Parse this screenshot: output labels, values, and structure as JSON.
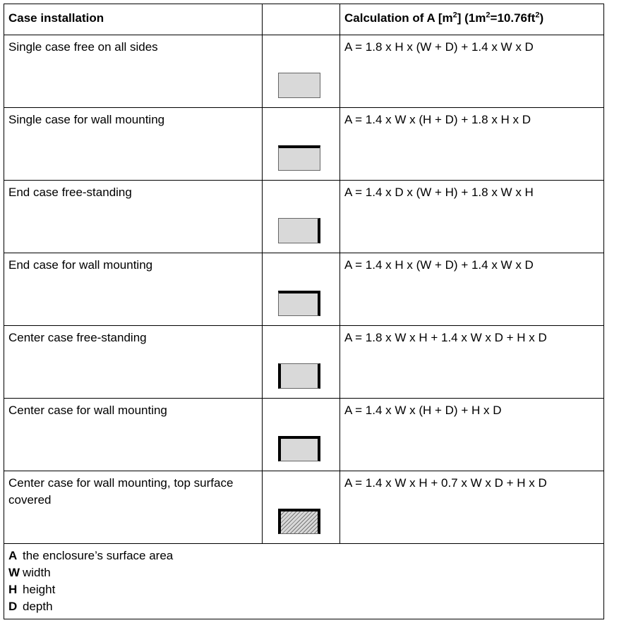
{
  "header": {
    "col1": "Case installation",
    "col3_prefix": "Calculation of A [m",
    "col3_sup1": "2",
    "col3_mid": "] (1m",
    "col3_sup2": "2",
    "col3_mid2": "=10.76ft",
    "col3_sup3": "2",
    "col3_suffix": ")"
  },
  "rows": [
    {
      "label": "Single case free on all sides",
      "formula": "A = 1.8 x H x (W + D) + 1.4 x W x D",
      "icon": "case-free-all-sides-icon"
    },
    {
      "label": "Single case for wall mounting",
      "formula": "A = 1.4 x W x (H + D) + 1.8 x H x D",
      "icon": "case-wall-top-icon"
    },
    {
      "label": "End case free-standing",
      "formula": "A = 1.4 x D x (W + H) + 1.8 x W x H",
      "icon": "case-right-side-icon"
    },
    {
      "label": "End case for wall mounting",
      "formula": "A = 1.4 x H x (W + D) + 1.4 x W x D",
      "icon": "case-top-right-icon"
    },
    {
      "label": "Center case free-standing",
      "formula": "A = 1.8 x W x H + 1.4 x W x D + H x D",
      "icon": "case-left-right-icon"
    },
    {
      "label": "Center case for wall mounting",
      "formula": "A = 1.4 x W x (H + D) + H x D",
      "icon": "case-top-left-right-icon"
    },
    {
      "label": "Center case for wall mounting, top surface covered",
      "formula": "A = 1.4 x W x H + 0.7 x W x D + H x D",
      "icon": "case-covered-hatched-icon"
    }
  ],
  "legend": [
    {
      "key": "A",
      "text": "the enclosure’s surface area"
    },
    {
      "key": "W",
      "text": "width"
    },
    {
      "key": "H",
      "text": "height"
    },
    {
      "key": "D",
      "text": "depth"
    }
  ]
}
